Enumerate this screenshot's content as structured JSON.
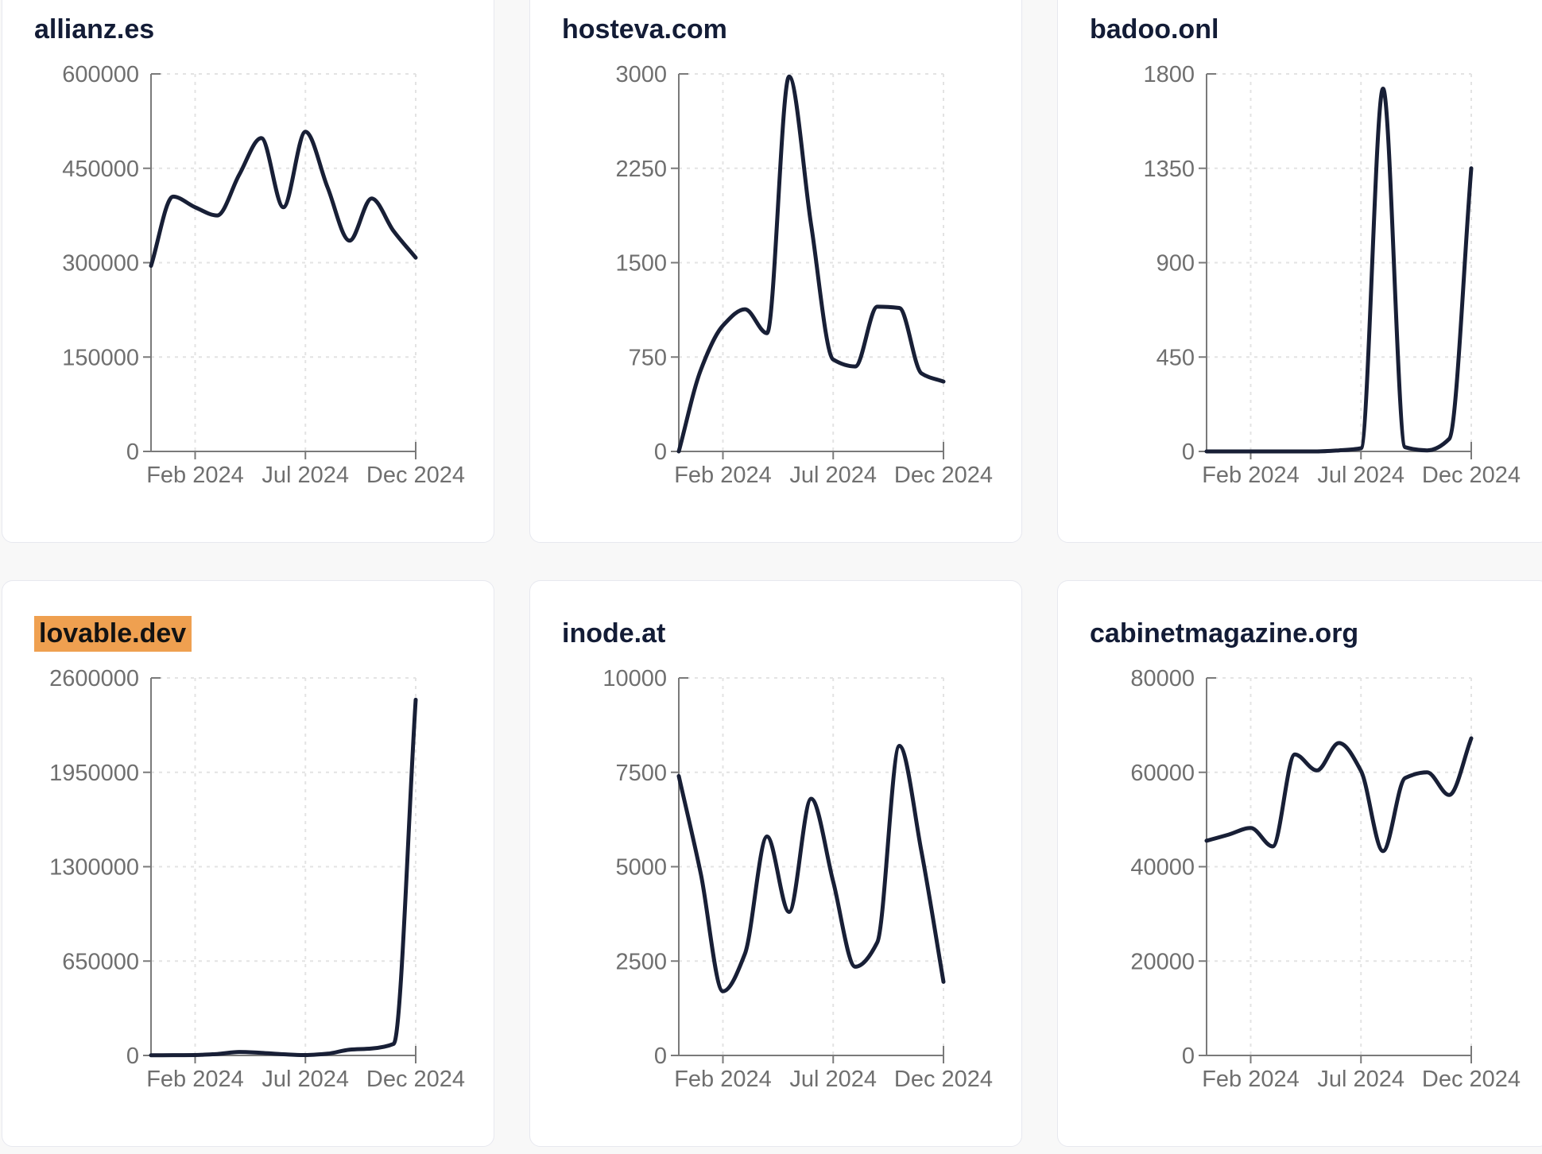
{
  "style": {
    "page_background": "#f8f8f8",
    "card_background": "#ffffff",
    "card_border_color": "#e7e8ef",
    "title_color": "#131c36",
    "line_color": "#181f36",
    "axis_color": "#7a7a7a",
    "tick_label_color": "#6f6f6f",
    "grid_color": "#e3e3e3",
    "highlight_color": "#efa050"
  },
  "chart_data": [
    {
      "type": "line",
      "title": "allianz.es",
      "title_highlighted": false,
      "x": [
        "Dec 2023",
        "Jan 2024",
        "Feb 2024",
        "Mar 2024",
        "Apr 2024",
        "May 2024",
        "Jun 2024",
        "Jul 2024",
        "Aug 2024",
        "Sep 2024",
        "Oct 2024",
        "Nov 2024",
        "Dec 2024"
      ],
      "values": [
        295000,
        405000,
        388000,
        375000,
        440000,
        498000,
        388000,
        508000,
        420000,
        335000,
        402000,
        350000,
        308000
      ],
      "ylim": [
        0,
        600000
      ],
      "yticks": [
        0,
        150000,
        300000,
        450000,
        600000
      ],
      "x_tick_labels": [
        "Feb 2024",
        "Jul 2024",
        "Dec 2024"
      ],
      "x_tick_indices": [
        2,
        7,
        12
      ],
      "grid": "dashed",
      "legend": "none"
    },
    {
      "type": "line",
      "title": "hosteva.com",
      "title_highlighted": false,
      "x": [
        "Dec 2023",
        "Jan 2024",
        "Feb 2024",
        "Mar 2024",
        "Apr 2024",
        "May 2024",
        "Jun 2024",
        "Jul 2024",
        "Aug 2024",
        "Sep 2024",
        "Oct 2024",
        "Nov 2024",
        "Dec 2024"
      ],
      "values": [
        0,
        650,
        1000,
        1130,
        940,
        2980,
        1800,
        730,
        675,
        1150,
        1140,
        620,
        555
      ],
      "ylim": [
        0,
        3000
      ],
      "yticks": [
        0,
        750,
        1500,
        2250,
        3000
      ],
      "x_tick_labels": [
        "Feb 2024",
        "Jul 2024",
        "Dec 2024"
      ],
      "x_tick_indices": [
        2,
        7,
        12
      ],
      "grid": "dashed",
      "legend": "none"
    },
    {
      "type": "line",
      "title": "badoo.onl",
      "title_highlighted": false,
      "x": [
        "Dec 2023",
        "Jan 2024",
        "Feb 2024",
        "Mar 2024",
        "Apr 2024",
        "May 2024",
        "Jun 2024",
        "Jul 2024",
        "Aug 2024",
        "Sep 2024",
        "Oct 2024",
        "Nov 2024",
        "Dec 2024"
      ],
      "values": [
        0,
        0,
        0,
        0,
        0,
        0,
        5,
        15,
        1730,
        20,
        5,
        60,
        1350
      ],
      "ylim": [
        0,
        1800
      ],
      "yticks": [
        0,
        450,
        900,
        1350,
        1800
      ],
      "x_tick_labels": [
        "Feb 2024",
        "Jul 2024",
        "Dec 2024"
      ],
      "x_tick_indices": [
        2,
        7,
        12
      ],
      "grid": "dashed",
      "legend": "none"
    },
    {
      "type": "line",
      "title": "lovable.dev",
      "title_highlighted": true,
      "x": [
        "Dec 2023",
        "Jan 2024",
        "Feb 2024",
        "Mar 2024",
        "Apr 2024",
        "May 2024",
        "Jun 2024",
        "Jul 2024",
        "Aug 2024",
        "Sep 2024",
        "Oct 2024",
        "Nov 2024",
        "Dec 2024"
      ],
      "values": [
        1000,
        2000,
        3000,
        10000,
        24000,
        18000,
        8000,
        3000,
        12000,
        40000,
        48000,
        80000,
        2450000
      ],
      "ylim": [
        0,
        2600000
      ],
      "yticks": [
        0,
        650000,
        1300000,
        1950000,
        2600000
      ],
      "x_tick_labels": [
        "Feb 2024",
        "Jul 2024",
        "Dec 2024"
      ],
      "x_tick_indices": [
        2,
        7,
        12
      ],
      "grid": "dashed",
      "legend": "none"
    },
    {
      "type": "line",
      "title": "inode.at",
      "title_highlighted": false,
      "x": [
        "Dec 2023",
        "Jan 2024",
        "Feb 2024",
        "Mar 2024",
        "Apr 2024",
        "May 2024",
        "Jun 2024",
        "Jul 2024",
        "Aug 2024",
        "Sep 2024",
        "Oct 2024",
        "Nov 2024",
        "Dec 2024"
      ],
      "values": [
        7400,
        4800,
        1700,
        2700,
        5800,
        3800,
        6800,
        4600,
        2350,
        3000,
        8200,
        5400,
        1950
      ],
      "ylim": [
        0,
        10000
      ],
      "yticks": [
        0,
        2500,
        5000,
        7500,
        10000
      ],
      "x_tick_labels": [
        "Feb 2024",
        "Jul 2024",
        "Dec 2024"
      ],
      "x_tick_indices": [
        2,
        7,
        12
      ],
      "grid": "dashed",
      "legend": "none"
    },
    {
      "type": "line",
      "title": "cabinetmagazine.org",
      "title_highlighted": false,
      "x": [
        "Dec 2023",
        "Jan 2024",
        "Feb 2024",
        "Mar 2024",
        "Apr 2024",
        "May 2024",
        "Jun 2024",
        "Jul 2024",
        "Aug 2024",
        "Sep 2024",
        "Oct 2024",
        "Nov 2024",
        "Dec 2024"
      ],
      "values": [
        45500,
        46800,
        48200,
        44300,
        63800,
        60400,
        66200,
        60300,
        43300,
        58800,
        60000,
        55200,
        67200
      ],
      "ylim": [
        0,
        80000
      ],
      "yticks": [
        0,
        20000,
        40000,
        60000,
        80000
      ],
      "x_tick_labels": [
        "Feb 2024",
        "Jul 2024",
        "Dec 2024"
      ],
      "x_tick_indices": [
        2,
        7,
        12
      ],
      "grid": "dashed",
      "legend": "none"
    }
  ]
}
